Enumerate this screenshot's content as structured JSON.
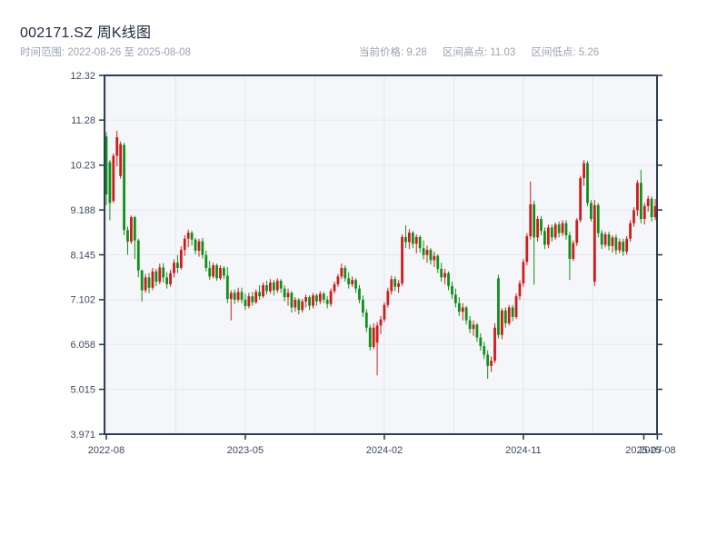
{
  "header": {
    "title": "002171.SZ 周K线图",
    "date_range": "时间范围: 2022-08-26 至 2025-08-08",
    "current_price": "当前价格: 9.28",
    "range_high": "区间高点: 11.03",
    "range_low": "区间低点: 5.26"
  },
  "chart_data": {
    "type": "candlestick",
    "symbol": "002171.SZ",
    "interval": "weekly",
    "title": "002171.SZ 周K线图",
    "date_start": "2022-08-26",
    "date_end": "2025-08-08",
    "current_price": 9.28,
    "range_high": 11.03,
    "range_low": 5.26,
    "ylim": [
      3.971,
      12.32
    ],
    "grid": true,
    "y_ticks": [
      {
        "label": "12.32",
        "value": 12.32
      },
      {
        "label": "11.28",
        "value": 11.28
      },
      {
        "label": "10.23",
        "value": 10.23
      },
      {
        "label": "9.188",
        "value": 9.188
      },
      {
        "label": "8.145",
        "value": 8.145
      },
      {
        "label": "7.102",
        "value": 7.102
      },
      {
        "label": "6.058",
        "value": 6.058
      },
      {
        "label": "5.015",
        "value": 5.015
      },
      {
        "label": "3.971",
        "value": 3.971
      }
    ],
    "x_ticks": [
      {
        "label": "2022-08",
        "week": 0
      },
      {
        "label": "2023-05",
        "week": 39
      },
      {
        "label": "2024-02",
        "week": 78
      },
      {
        "label": "2024-11",
        "week": 117
      },
      {
        "label": "2025-07",
        "week": 150.8
      },
      {
        "label": "2025-08",
        "week": 154.6
      }
    ],
    "v_grid_weeks": [
      0,
      19.5,
      39,
      58.5,
      78,
      97.5,
      117,
      136.5
    ],
    "colors": {
      "up": "#d01b1b",
      "down": "#10901a",
      "plot_bg": "#f5f6f9",
      "grid": "#e4e7ee",
      "spine": "#2e3d54",
      "tick_label": "#3c4a61",
      "title": "#1d2b3e",
      "subtitle": "#9aa4b1"
    },
    "candles": [
      [
        "2022-08-26",
        10.9,
        11.0,
        9.3,
        9.55
      ],
      [
        "2022-09-02",
        10.3,
        10.35,
        8.95,
        9.35
      ],
      [
        "2022-09-09",
        9.4,
        10.5,
        9.35,
        10.45
      ],
      [
        "2022-09-16",
        10.45,
        11.03,
        10.2,
        10.88
      ],
      [
        "2022-09-23",
        9.98,
        10.78,
        9.92,
        10.72
      ],
      [
        "2022-09-30",
        10.7,
        10.75,
        8.6,
        8.72
      ],
      [
        "2022-10-07",
        8.72,
        8.8,
        8.15,
        8.45
      ],
      [
        "2022-10-14",
        8.45,
        9.06,
        8.4,
        9.02
      ],
      [
        "2022-10-21",
        9.02,
        9.05,
        8.05,
        8.48
      ],
      [
        "2022-10-28",
        8.48,
        8.52,
        7.62,
        7.78
      ],
      [
        "2022-11-04",
        7.78,
        7.8,
        7.06,
        7.32
      ],
      [
        "2022-11-11",
        7.32,
        7.7,
        7.26,
        7.62
      ],
      [
        "2022-11-18",
        7.62,
        7.72,
        7.25,
        7.38
      ],
      [
        "2022-11-25",
        7.38,
        7.84,
        7.32,
        7.76
      ],
      [
        "2022-12-02",
        7.76,
        7.82,
        7.42,
        7.52
      ],
      [
        "2022-12-09",
        7.52,
        7.94,
        7.46,
        7.85
      ],
      [
        "2022-12-16",
        7.85,
        7.95,
        7.5,
        7.62
      ],
      [
        "2022-12-23",
        7.62,
        7.74,
        7.36,
        7.46
      ],
      [
        "2022-12-30",
        7.46,
        7.8,
        7.4,
        7.72
      ],
      [
        "2023-01-06",
        7.72,
        8.04,
        7.62,
        7.96
      ],
      [
        "2023-01-13",
        7.96,
        8.14,
        7.72,
        7.84
      ],
      [
        "2023-01-20",
        7.84,
        8.34,
        7.8,
        8.26
      ],
      [
        "2023-01-27",
        8.26,
        8.6,
        8.12,
        8.52
      ],
      [
        "2023-02-03",
        8.52,
        8.73,
        8.32,
        8.66
      ],
      [
        "2023-02-10",
        8.66,
        8.7,
        8.36,
        8.5
      ],
      [
        "2023-02-17",
        8.5,
        8.54,
        8.16,
        8.24
      ],
      [
        "2023-02-24",
        8.24,
        8.52,
        8.1,
        8.46
      ],
      [
        "2023-03-03",
        8.46,
        8.54,
        8.06,
        8.14
      ],
      [
        "2023-03-10",
        8.14,
        8.24,
        7.76,
        7.84
      ],
      [
        "2023-03-17",
        7.84,
        8.0,
        7.56,
        7.64
      ],
      [
        "2023-03-24",
        7.64,
        7.96,
        7.6,
        7.9
      ],
      [
        "2023-03-31",
        7.9,
        7.94,
        7.54,
        7.6
      ],
      [
        "2023-04-07",
        7.6,
        7.9,
        7.56,
        7.84
      ],
      [
        "2023-04-14",
        7.84,
        7.88,
        7.58,
        7.66
      ],
      [
        "2023-04-21",
        7.66,
        7.86,
        7.02,
        7.12
      ],
      [
        "2023-04-28",
        7.12,
        7.32,
        6.62,
        7.26
      ],
      [
        "2023-05-05",
        7.26,
        7.34,
        7.0,
        7.1
      ],
      [
        "2023-05-12",
        7.1,
        7.38,
        7.04,
        7.28
      ],
      [
        "2023-05-19",
        7.28,
        7.38,
        7.02,
        7.1
      ],
      [
        "2023-05-26",
        7.1,
        7.24,
        6.86,
        6.95
      ],
      [
        "2023-06-02",
        6.95,
        7.26,
        6.9,
        7.18
      ],
      [
        "2023-06-09",
        7.18,
        7.28,
        6.96,
        7.04
      ],
      [
        "2023-06-16",
        7.04,
        7.34,
        7.0,
        7.28
      ],
      [
        "2023-06-23",
        7.28,
        7.44,
        7.1,
        7.18
      ],
      [
        "2023-06-30",
        7.18,
        7.5,
        7.14,
        7.44
      ],
      [
        "2023-07-07",
        7.44,
        7.54,
        7.22,
        7.3
      ],
      [
        "2023-07-14",
        7.3,
        7.58,
        7.24,
        7.5
      ],
      [
        "2023-07-21",
        7.5,
        7.56,
        7.2,
        7.32
      ],
      [
        "2023-07-28",
        7.32,
        7.6,
        7.26,
        7.54
      ],
      [
        "2023-08-04",
        7.54,
        7.58,
        7.26,
        7.36
      ],
      [
        "2023-08-11",
        7.36,
        7.44,
        7.06,
        7.16
      ],
      [
        "2023-08-18",
        7.16,
        7.36,
        6.96,
        7.26
      ],
      [
        "2023-08-25",
        7.26,
        7.3,
        6.8,
        6.92
      ],
      [
        "2023-09-01",
        6.92,
        7.16,
        6.82,
        7.1
      ],
      [
        "2023-09-08",
        7.1,
        7.14,
        6.76,
        6.86
      ],
      [
        "2023-09-15",
        6.86,
        7.12,
        6.8,
        7.06
      ],
      [
        "2023-09-22",
        7.06,
        7.22,
        6.92,
        7.16
      ],
      [
        "2023-09-29",
        7.16,
        7.2,
        6.86,
        6.96
      ],
      [
        "2023-10-06",
        6.96,
        7.26,
        6.9,
        7.2
      ],
      [
        "2023-10-13",
        7.2,
        7.24,
        6.96,
        7.06
      ],
      [
        "2023-10-20",
        7.06,
        7.3,
        7.0,
        7.24
      ],
      [
        "2023-10-27",
        7.24,
        7.28,
        7.02,
        7.1
      ],
      [
        "2023-11-03",
        7.1,
        7.18,
        6.9,
        7.0
      ],
      [
        "2023-11-10",
        7.0,
        7.36,
        6.94,
        7.3
      ],
      [
        "2023-11-17",
        7.3,
        7.52,
        7.24,
        7.46
      ],
      [
        "2023-11-24",
        7.46,
        7.7,
        7.4,
        7.64
      ],
      [
        "2023-12-01",
        7.64,
        7.94,
        7.58,
        7.84
      ],
      [
        "2023-12-08",
        7.84,
        7.9,
        7.52,
        7.6
      ],
      [
        "2023-12-15",
        7.6,
        7.74,
        7.36,
        7.46
      ],
      [
        "2023-12-22",
        7.46,
        7.64,
        7.4,
        7.56
      ],
      [
        "2023-12-29",
        7.56,
        7.6,
        7.26,
        7.36
      ],
      [
        "2024-01-05",
        7.36,
        7.44,
        7.02,
        7.1
      ],
      [
        "2024-01-12",
        7.1,
        7.2,
        6.7,
        6.8
      ],
      [
        "2024-01-19",
        6.8,
        6.88,
        6.35,
        6.45
      ],
      [
        "2024-01-26",
        6.45,
        6.52,
        5.92,
        6.0
      ],
      [
        "2024-02-02",
        6.0,
        6.55,
        5.95,
        6.45
      ],
      [
        "2024-02-09",
        6.1,
        6.58,
        5.34,
        6.5
      ],
      [
        "2024-02-16",
        6.5,
        6.72,
        6.3,
        6.64
      ],
      [
        "2024-02-23",
        6.64,
        7.04,
        6.58,
        6.98
      ],
      [
        "2024-03-01",
        6.98,
        7.38,
        6.92,
        7.3
      ],
      [
        "2024-03-08",
        7.3,
        7.66,
        7.22,
        7.58
      ],
      [
        "2024-03-15",
        7.58,
        7.64,
        7.3,
        7.4
      ],
      [
        "2024-03-22",
        7.4,
        7.56,
        7.26,
        7.48
      ],
      [
        "2024-03-29",
        7.48,
        8.62,
        7.42,
        8.56
      ],
      [
        "2024-04-05",
        8.56,
        8.83,
        8.3,
        8.44
      ],
      [
        "2024-04-12",
        8.44,
        8.74,
        8.28,
        8.66
      ],
      [
        "2024-04-19",
        8.66,
        8.7,
        8.3,
        8.4
      ],
      [
        "2024-04-26",
        8.4,
        8.62,
        8.18,
        8.56
      ],
      [
        "2024-05-03",
        8.56,
        8.6,
        8.2,
        8.3
      ],
      [
        "2024-05-10",
        8.3,
        8.48,
        8.04,
        8.14
      ],
      [
        "2024-05-17",
        8.14,
        8.36,
        7.96,
        8.26
      ],
      [
        "2024-05-24",
        8.26,
        8.3,
        7.92,
        8.02
      ],
      [
        "2024-05-31",
        8.02,
        8.22,
        7.86,
        8.12
      ],
      [
        "2024-06-07",
        8.12,
        8.16,
        7.72,
        7.82
      ],
      [
        "2024-06-14",
        7.82,
        7.96,
        7.52,
        7.62
      ],
      [
        "2024-06-21",
        7.62,
        7.82,
        7.46,
        7.72
      ],
      [
        "2024-06-28",
        7.72,
        7.76,
        7.32,
        7.42
      ],
      [
        "2024-07-05",
        7.42,
        7.52,
        7.12,
        7.22
      ],
      [
        "2024-07-12",
        7.22,
        7.36,
        6.92,
        7.02
      ],
      [
        "2024-07-19",
        7.02,
        7.16,
        6.72,
        6.82
      ],
      [
        "2024-07-26",
        6.82,
        7.02,
        6.62,
        6.92
      ],
      [
        "2024-08-02",
        6.92,
        6.96,
        6.52,
        6.62
      ],
      [
        "2024-08-09",
        6.62,
        6.72,
        6.32,
        6.42
      ],
      [
        "2024-08-16",
        6.42,
        6.62,
        6.26,
        6.52
      ],
      [
        "2024-08-23",
        6.52,
        6.56,
        6.12,
        6.22
      ],
      [
        "2024-08-30",
        6.22,
        6.32,
        5.92,
        6.02
      ],
      [
        "2024-09-06",
        6.02,
        6.12,
        5.72,
        5.82
      ],
      [
        "2024-09-13",
        5.82,
        5.92,
        5.26,
        5.56
      ],
      [
        "2024-09-20",
        5.56,
        5.78,
        5.42,
        5.68
      ],
      [
        "2024-09-27",
        5.68,
        6.55,
        5.62,
        6.45
      ],
      [
        "2024-10-04",
        7.6,
        7.68,
        6.2,
        6.28
      ],
      [
        "2024-10-11",
        6.28,
        6.9,
        6.18,
        6.85
      ],
      [
        "2024-10-18",
        6.85,
        6.92,
        6.45,
        6.55
      ],
      [
        "2024-10-25",
        6.55,
        6.98,
        6.5,
        6.92
      ],
      [
        "2024-11-01",
        6.92,
        6.98,
        6.6,
        6.7
      ],
      [
        "2024-11-08",
        6.7,
        7.25,
        6.65,
        7.18
      ],
      [
        "2024-11-15",
        7.18,
        7.55,
        7.1,
        7.48
      ],
      [
        "2024-11-22",
        7.48,
        8.05,
        7.4,
        7.98
      ],
      [
        "2024-11-29",
        7.98,
        8.65,
        7.9,
        8.58
      ],
      [
        "2024-12-06",
        8.58,
        9.85,
        8.5,
        9.32
      ],
      [
        "2024-12-13",
        9.32,
        9.4,
        7.45,
        8.55
      ],
      [
        "2024-12-20",
        8.55,
        9.05,
        8.45,
        8.98
      ],
      [
        "2024-12-27",
        8.98,
        9.05,
        8.6,
        8.7
      ],
      [
        "2025-01-03",
        8.7,
        8.78,
        8.28,
        8.38
      ],
      [
        "2025-01-10",
        8.38,
        8.85,
        8.3,
        8.78
      ],
      [
        "2025-01-17",
        8.78,
        8.85,
        8.45,
        8.55
      ],
      [
        "2025-01-24",
        8.55,
        8.9,
        8.5,
        8.85
      ],
      [
        "2025-01-31",
        8.85,
        8.92,
        8.55,
        8.65
      ],
      [
        "2025-02-07",
        8.65,
        8.95,
        8.58,
        8.88
      ],
      [
        "2025-02-14",
        8.88,
        8.95,
        8.5,
        8.6
      ],
      [
        "2025-02-21",
        8.6,
        8.68,
        7.56,
        8.05
      ],
      [
        "2025-02-28",
        8.05,
        8.48,
        8.0,
        8.42
      ],
      [
        "2025-03-07",
        8.42,
        9.0,
        8.35,
        8.95
      ],
      [
        "2025-03-14",
        8.95,
        9.98,
        8.9,
        9.93
      ],
      [
        "2025-03-21",
        9.93,
        10.35,
        9.75,
        10.28
      ],
      [
        "2025-03-28",
        10.28,
        10.33,
        9.28,
        9.35
      ],
      [
        "2025-04-04",
        9.35,
        9.42,
        8.92,
        8.98
      ],
      [
        "2025-04-11",
        7.52,
        9.42,
        7.42,
        9.3
      ],
      [
        "2025-04-18",
        9.3,
        9.35,
        8.55,
        8.65
      ],
      [
        "2025-04-25",
        8.65,
        8.72,
        8.28,
        8.38
      ],
      [
        "2025-05-02",
        8.38,
        8.68,
        8.32,
        8.62
      ],
      [
        "2025-05-09",
        8.62,
        8.68,
        8.25,
        8.35
      ],
      [
        "2025-05-16",
        8.35,
        8.6,
        8.2,
        8.55
      ],
      [
        "2025-05-23",
        8.55,
        8.62,
        8.15,
        8.25
      ],
      [
        "2025-05-30",
        8.25,
        8.52,
        8.18,
        8.45
      ],
      [
        "2025-06-06",
        8.45,
        8.52,
        8.12,
        8.22
      ],
      [
        "2025-06-13",
        8.22,
        8.58,
        8.15,
        8.52
      ],
      [
        "2025-06-20",
        8.52,
        8.95,
        8.45,
        8.88
      ],
      [
        "2025-06-27",
        8.88,
        9.25,
        8.8,
        9.18
      ],
      [
        "2025-07-04",
        9.18,
        9.88,
        9.05,
        9.82
      ],
      [
        "2025-07-11",
        9.82,
        10.12,
        8.88,
        8.98
      ],
      [
        "2025-07-18",
        8.98,
        9.35,
        8.85,
        9.28
      ],
      [
        "2025-07-25",
        9.28,
        9.52,
        9.15,
        9.45
      ],
      [
        "2025-08-01",
        9.45,
        9.5,
        8.92,
        9.02
      ],
      [
        "2025-08-08",
        9.02,
        9.45,
        8.95,
        9.28
      ]
    ]
  }
}
